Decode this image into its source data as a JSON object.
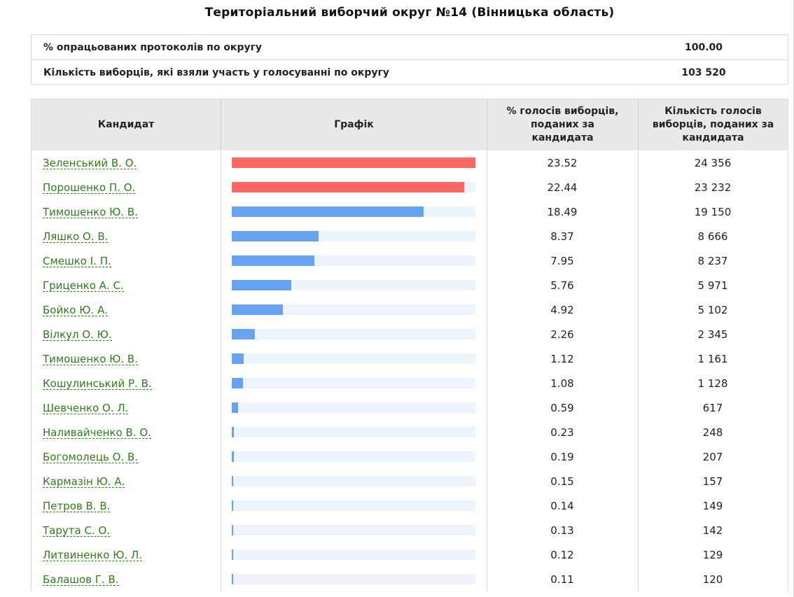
{
  "title": "Територіальний виборчий округ №14 (Вінницька область)",
  "summary": [
    {
      "label": "% опрацьованих протоколів по округу",
      "value": "100.00"
    },
    {
      "label": "Кількість виборців, які взяли участь у голосуванні по округу",
      "value": "103 520"
    }
  ],
  "headers": {
    "candidate": "Кандидат",
    "chart": "Графік",
    "percent": "% голосів виборців, поданих за кандидата",
    "votes": "Кількість голосів виборців, поданих за кандидата"
  },
  "colors": {
    "leader_bar": "#ff6666",
    "other_bar": "#66a3f2",
    "bar_track": "#ecf3fb",
    "candidate_link": "#2e7d1a"
  },
  "chart_data": {
    "type": "bar",
    "leaders": 2,
    "categories": [
      "Зеленський В. О.",
      "Порошенко П. О.",
      "Тимошенко Ю. В.",
      "Ляшко О. В.",
      "Смешко І. П.",
      "Гриценко А. С.",
      "Бойко Ю. А.",
      "Вілкул О. Ю.",
      "Тимошенко Ю. В.",
      "Кошулинський Р. В.",
      "Шевченко О. Л.",
      "Наливайченко В. О.",
      "Богомолець О. В.",
      "Кармазін Ю. А.",
      "Петров В. В.",
      "Тарута С. О.",
      "Литвиненко Ю. Л.",
      "Балашов Г. В."
    ],
    "values": [
      23.52,
      22.44,
      18.49,
      8.37,
      7.95,
      5.76,
      4.92,
      2.26,
      1.12,
      1.08,
      0.59,
      0.23,
      0.19,
      0.15,
      0.14,
      0.13,
      0.12,
      0.11
    ],
    "percent_labels": [
      "23.52",
      "22.44",
      "18.49",
      "8.37",
      "7.95",
      "5.76",
      "4.92",
      "2.26",
      "1.12",
      "1.08",
      "0.59",
      "0.23",
      "0.19",
      "0.15",
      "0.14",
      "0.13",
      "0.12",
      "0.11"
    ],
    "votes": [
      "24 356",
      "23 232",
      "19 150",
      "8 666",
      "8 237",
      "5 971",
      "5 102",
      "2 345",
      "1 161",
      "1 128",
      "617",
      "248",
      "207",
      "157",
      "149",
      "142",
      "129",
      "120"
    ]
  }
}
